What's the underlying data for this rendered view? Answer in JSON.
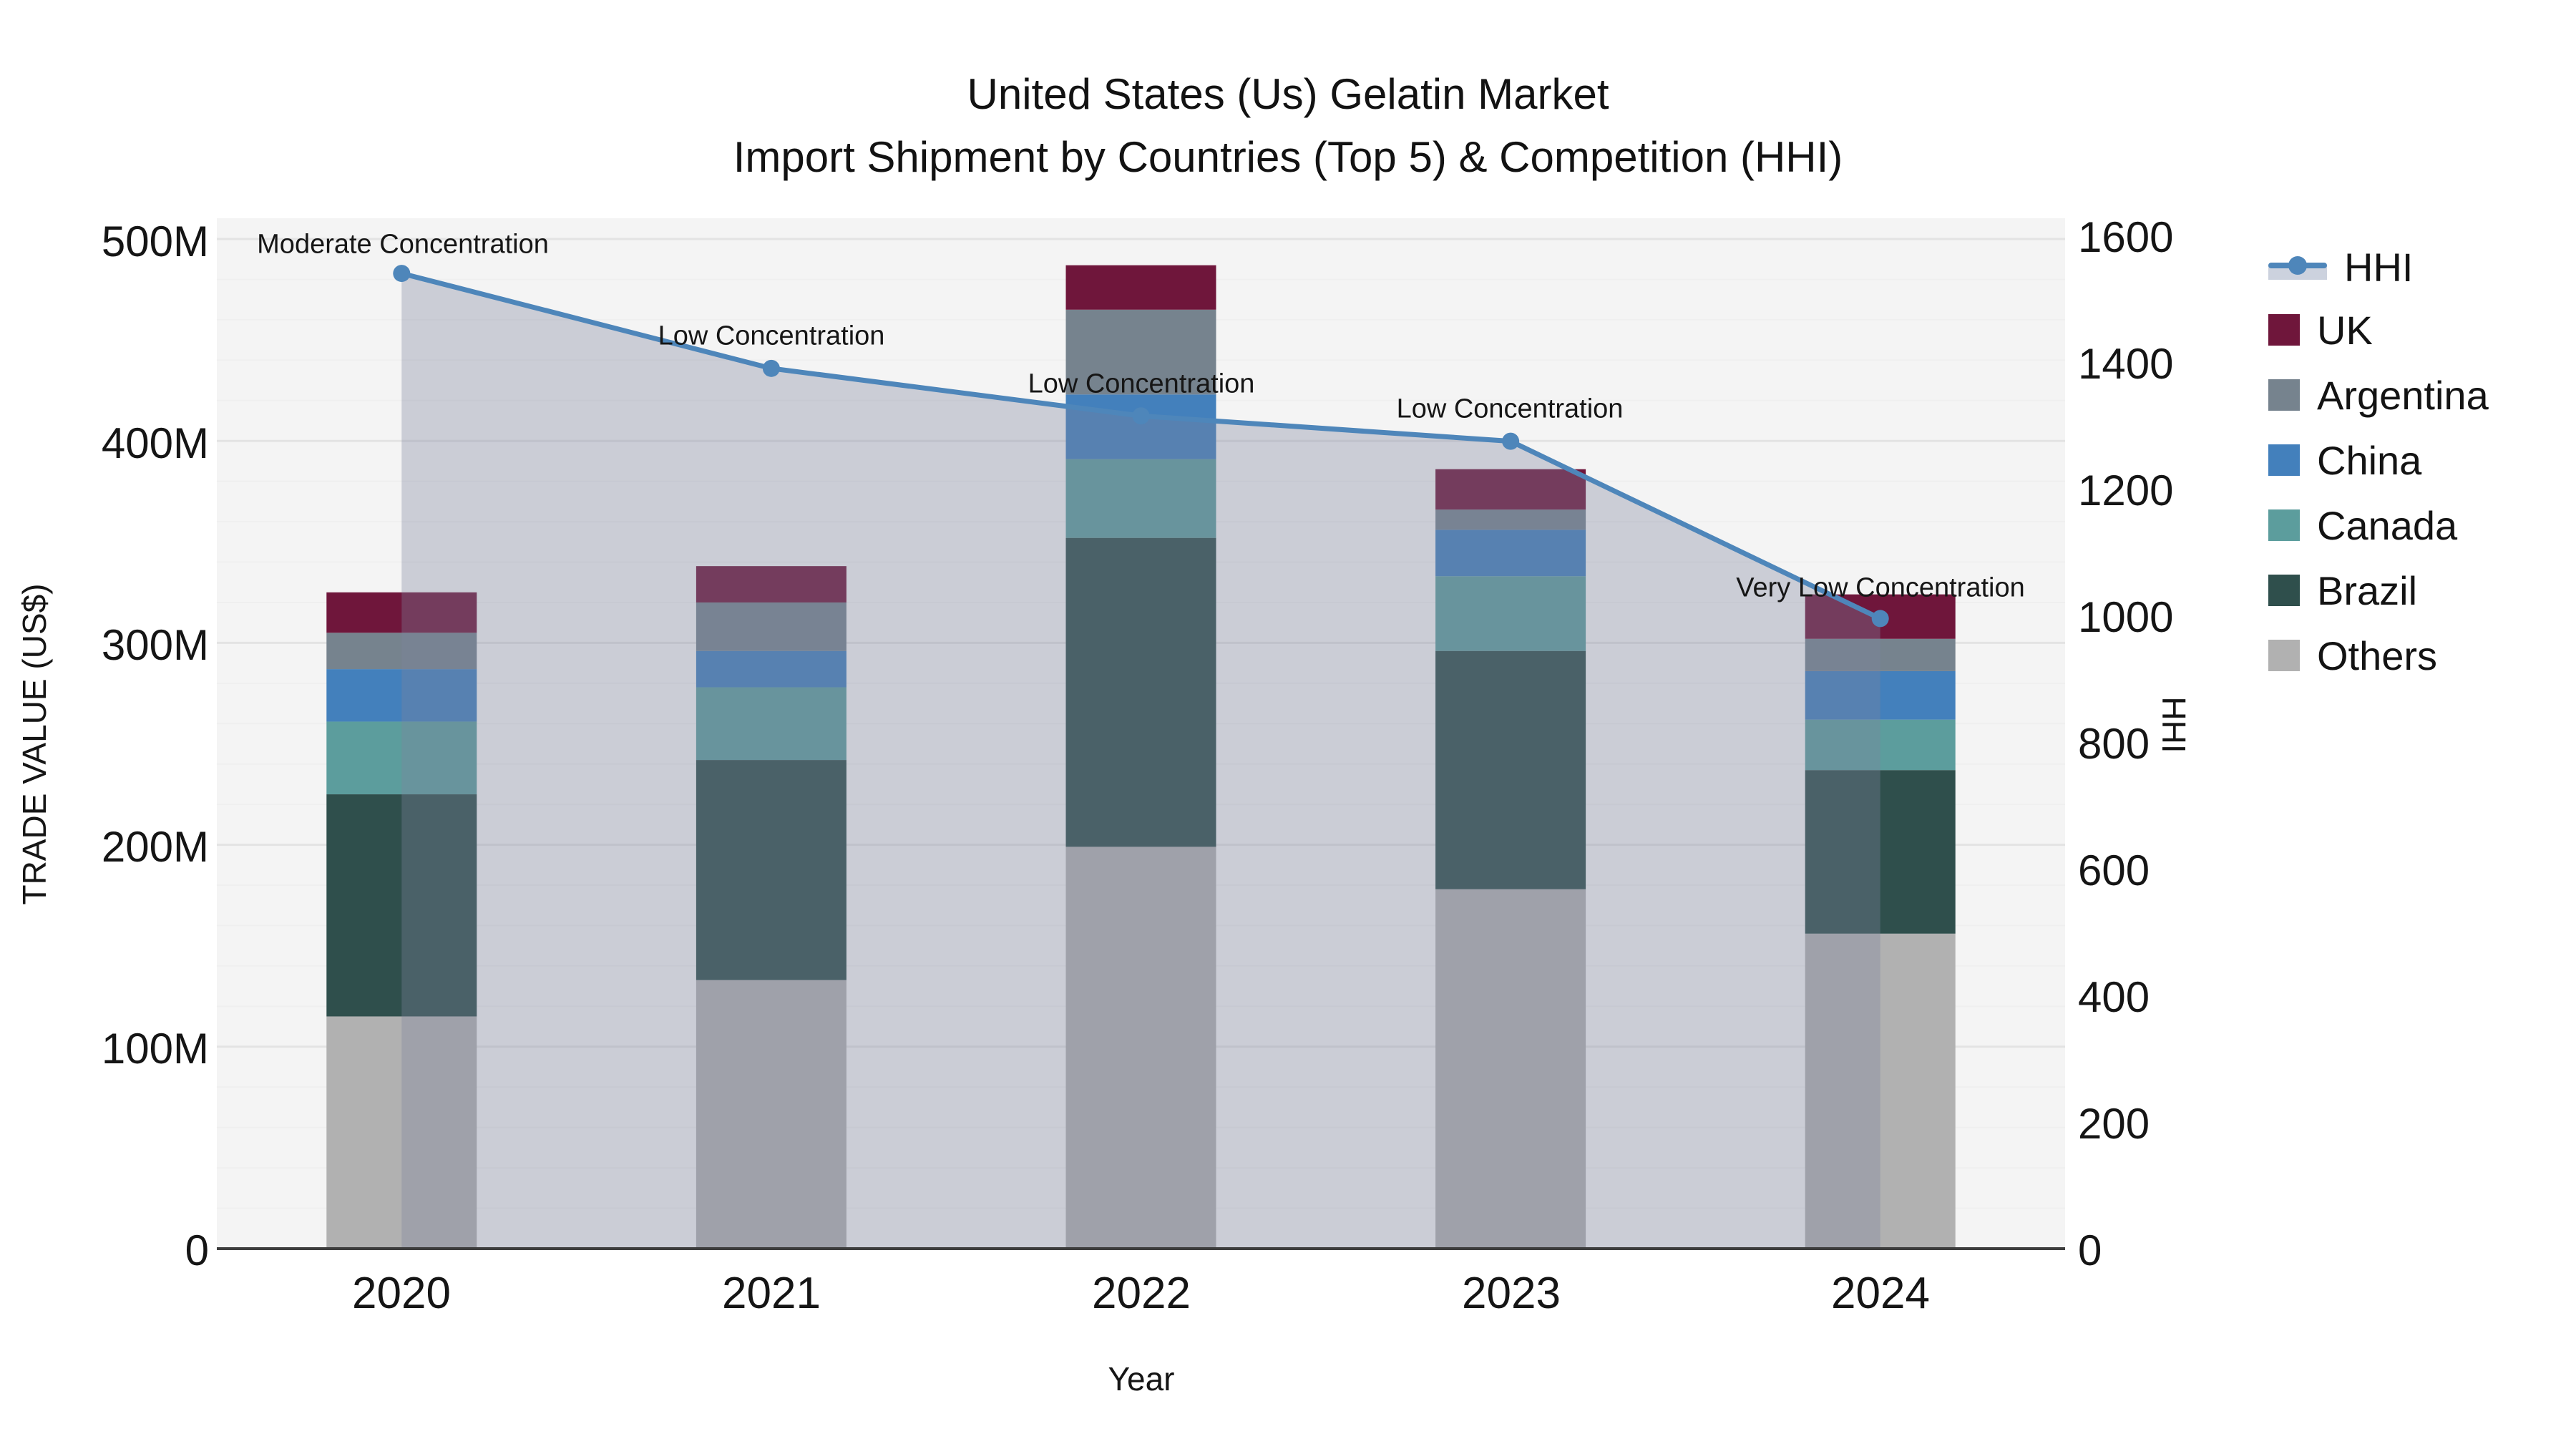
{
  "title": {
    "line1": "United States (Us) Gelatin Market",
    "line2": "Import Shipment by Countries (Top 5) & Competition (HHI)"
  },
  "axes": {
    "left": {
      "title": "TRADE VALUE (US$)",
      "ticks": [
        "0",
        "100M",
        "200M",
        "300M",
        "400M",
        "500M"
      ]
    },
    "right": {
      "title": "HHI",
      "ticks": [
        "0",
        "200",
        "400",
        "600",
        "800",
        "1000",
        "1200",
        "1400",
        "1600"
      ]
    },
    "x": {
      "title": "Year",
      "ticks": [
        "2020",
        "2021",
        "2022",
        "2023",
        "2024"
      ]
    }
  },
  "legend": {
    "items": [
      {
        "label": "HHI",
        "color": "#4e86ba",
        "kind": "line"
      },
      {
        "label": "UK",
        "color": "#6f163b",
        "kind": "swatch"
      },
      {
        "label": "Argentina",
        "color": "#76838e",
        "kind": "swatch"
      },
      {
        "label": "China",
        "color": "#4380bc",
        "kind": "swatch"
      },
      {
        "label": "Canada",
        "color": "#5c9d9d",
        "kind": "swatch"
      },
      {
        "label": "Brazil",
        "color": "#2f4f4c",
        "kind": "swatch"
      },
      {
        "label": "Others",
        "color": "#b1b1b1",
        "kind": "swatch"
      }
    ]
  },
  "chart_data": {
    "type": "bar",
    "subtype": "stacked-bars-with-dual-axis-line",
    "title": "United States (Us) Gelatin Market — Import Shipment by Countries (Top 5) & Competition (HHI)",
    "categories": [
      "2020",
      "2021",
      "2022",
      "2023",
      "2024"
    ],
    "values_unit": "Million US$",
    "series": [
      {
        "name": "Others",
        "color": "#b1b1b1",
        "values": [
          115,
          133,
          199,
          178,
          156
        ]
      },
      {
        "name": "Brazil",
        "color": "#2f4f4c",
        "values": [
          110,
          109,
          153,
          118,
          81
        ]
      },
      {
        "name": "Canada",
        "color": "#5c9d9d",
        "values": [
          36,
          36,
          39,
          37,
          25
        ]
      },
      {
        "name": "China",
        "color": "#4380bc",
        "values": [
          26,
          18,
          32,
          23,
          24
        ]
      },
      {
        "name": "Argentina",
        "color": "#76838e",
        "values": [
          18,
          24,
          42,
          10,
          16
        ]
      },
      {
        "name": "UK",
        "color": "#6f163b",
        "values": [
          20,
          18,
          22,
          20,
          22
        ]
      }
    ],
    "bar_totals": [
      325,
      338,
      487,
      386,
      324
    ],
    "line_series": {
      "name": "HHI",
      "axis": "right",
      "color": "#4e86ba",
      "area_fill_color": "#7d859f",
      "area_fill_opacity": 0.35,
      "values": [
        1540,
        1390,
        1315,
        1275,
        995
      ]
    },
    "annotations": [
      {
        "year": "2020",
        "text": "Moderate Concentration"
      },
      {
        "year": "2021",
        "text": "Low Concentration"
      },
      {
        "year": "2022",
        "text": "Low Concentration"
      },
      {
        "year": "2023",
        "text": "Low Concentration"
      },
      {
        "year": "2024",
        "text": "Very Low Concentration"
      }
    ],
    "xlabel": "Year",
    "ylabel": "TRADE VALUE (US$)",
    "ylabel_right": "HHI",
    "ylim_left": [
      0,
      500000000
    ],
    "ylim_right": [
      0,
      1600
    ],
    "grid": true,
    "legend_position": "right",
    "plot_bg": "#f4f4f4"
  }
}
